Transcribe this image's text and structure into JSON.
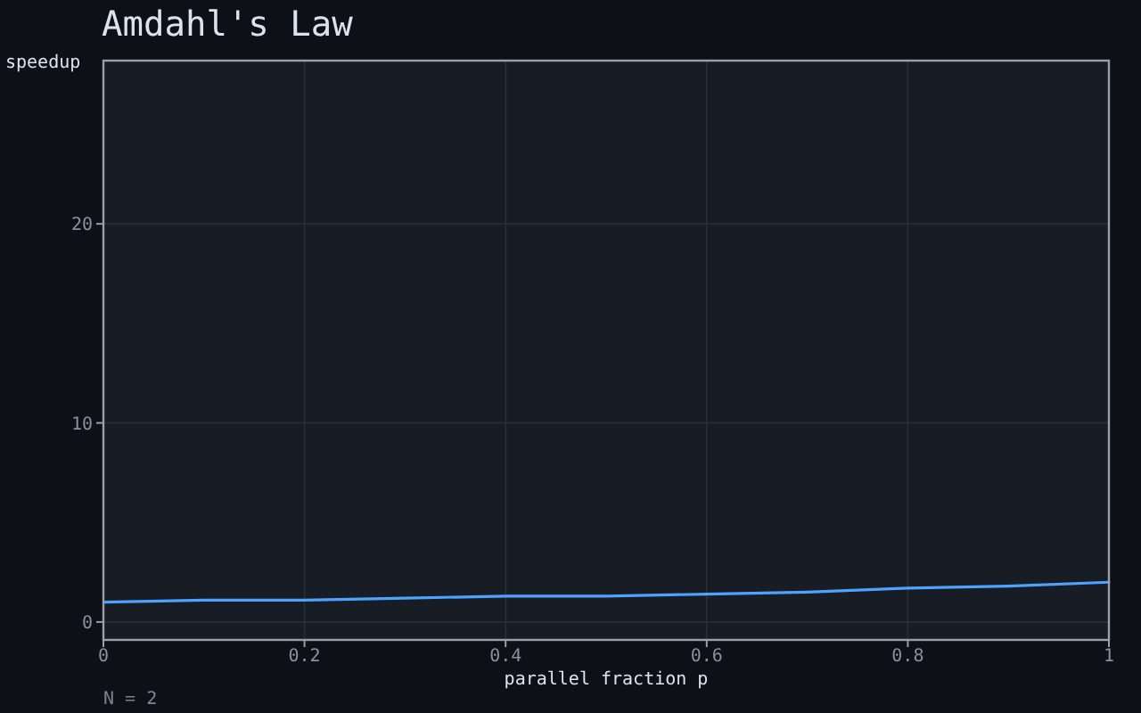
{
  "chart_data": {
    "type": "line",
    "title": "Amdahl's Law",
    "xlabel": "parallel fraction p",
    "ylabel": "speedup",
    "x": [
      0,
      0.1,
      0.2,
      0.3,
      0.4,
      0.5,
      0.6,
      0.7,
      0.8,
      0.9,
      1
    ],
    "series": [
      {
        "color": "#4da3ff",
        "values": [
          1.0,
          1.1,
          1.1,
          1.2,
          1.3,
          1.3,
          1.4,
          1.5,
          1.7,
          1.8,
          2.0
        ]
      }
    ],
    "xlim": [
      0,
      1
    ],
    "xticks": [
      0,
      0.2,
      0.4,
      0.6,
      0.8,
      1
    ],
    "ylim": [
      -0.9,
      28.2
    ],
    "yticks": [
      0,
      10,
      20
    ],
    "grid": true,
    "marker": "none",
    "line_style": "solid",
    "annotations": [
      "N = 2"
    ]
  }
}
